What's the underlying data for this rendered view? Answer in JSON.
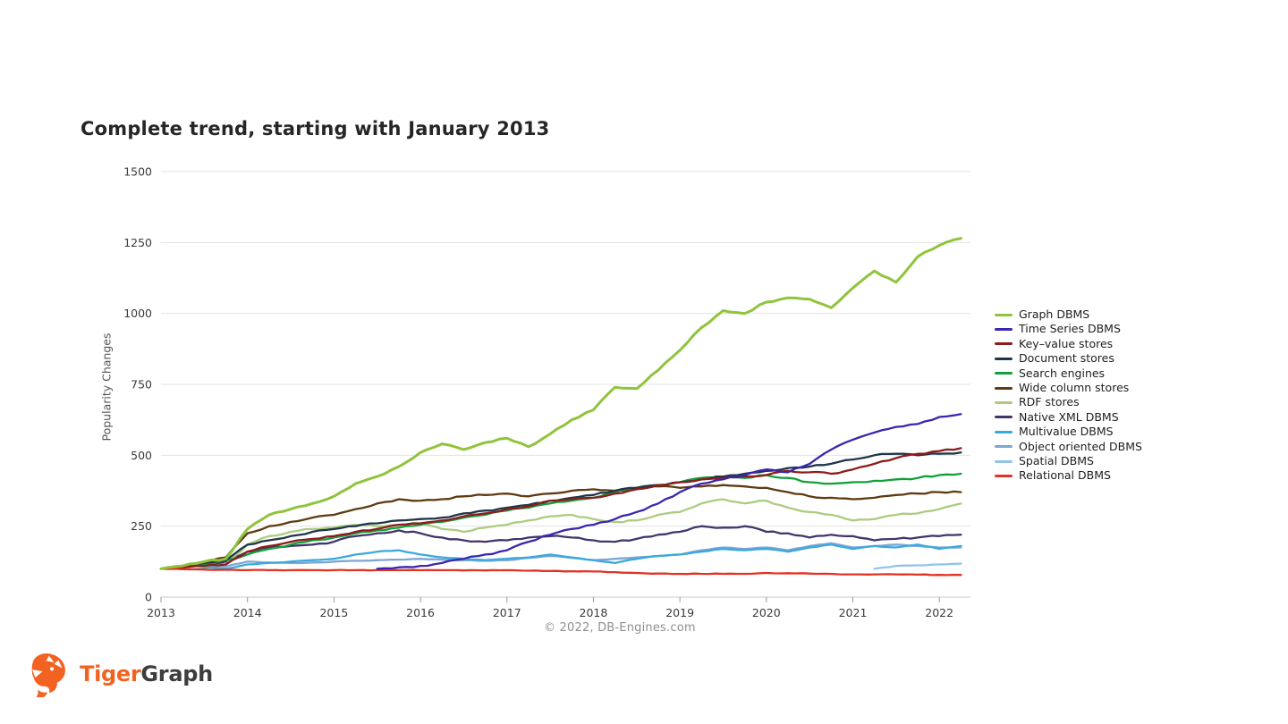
{
  "page": {
    "background": "#ffffff"
  },
  "header": {
    "title": "Complete trend, starting with January 2013"
  },
  "chart_data": {
    "type": "line",
    "title": "Complete trend, starting with January 2013",
    "xlabel": "",
    "ylabel": "Popularity Changes",
    "footnote": "© 2022, DB-Engines.com",
    "legend_position": "right",
    "grid": "horizontal",
    "xlim": [
      2013,
      2022.36
    ],
    "ylim": [
      0,
      1500
    ],
    "x_ticks": [
      2013,
      2014,
      2015,
      2016,
      2017,
      2018,
      2019,
      2020,
      2021,
      2022
    ],
    "y_ticks": [
      0,
      250,
      500,
      750,
      1000,
      1250,
      1500
    ],
    "x": [
      2013,
      2013.25,
      2013.5,
      2013.75,
      2014,
      2014.25,
      2014.5,
      2014.75,
      2015,
      2015.25,
      2015.5,
      2015.75,
      2016,
      2016.25,
      2016.5,
      2016.75,
      2017,
      2017.25,
      2017.5,
      2017.75,
      2018,
      2018.25,
      2018.5,
      2018.75,
      2019,
      2019.25,
      2019.5,
      2019.75,
      2020,
      2020.25,
      2020.5,
      2020.75,
      2021,
      2021.25,
      2021.5,
      2021.75,
      2022,
      2022.25
    ],
    "series": [
      {
        "name": "Graph DBMS",
        "color": "#8fc43c",
        "values": [
          100,
          110,
          125,
          135,
          240,
          290,
          310,
          330,
          355,
          400,
          425,
          460,
          510,
          540,
          520,
          545,
          560,
          530,
          575,
          625,
          660,
          740,
          735,
          800,
          870,
          950,
          1010,
          1000,
          1040,
          1055,
          1050,
          1020,
          1090,
          1150,
          1110,
          1200,
          1240,
          1265
        ]
      },
      {
        "name": "Time Series DBMS",
        "color": "#3a27ae",
        "values": [
          null,
          null,
          null,
          null,
          null,
          null,
          null,
          null,
          null,
          null,
          100,
          105,
          110,
          120,
          135,
          150,
          165,
          195,
          220,
          240,
          255,
          275,
          300,
          330,
          370,
          400,
          415,
          430,
          450,
          440,
          470,
          520,
          555,
          580,
          600,
          610,
          635,
          645
        ]
      },
      {
        "name": "Key–value stores",
        "color": "#8e1b1b",
        "values": [
          100,
          105,
          110,
          115,
          160,
          180,
          195,
          205,
          215,
          230,
          240,
          255,
          260,
          270,
          285,
          295,
          310,
          320,
          340,
          345,
          350,
          365,
          380,
          395,
          405,
          415,
          420,
          425,
          430,
          445,
          440,
          435,
          450,
          470,
          490,
          505,
          515,
          525
        ]
      },
      {
        "name": "Document stores",
        "color": "#1f364a",
        "values": [
          100,
          110,
          120,
          130,
          185,
          200,
          215,
          230,
          240,
          250,
          260,
          270,
          275,
          280,
          295,
          305,
          315,
          325,
          340,
          350,
          360,
          375,
          385,
          395,
          405,
          415,
          425,
          435,
          445,
          455,
          460,
          470,
          485,
          500,
          505,
          500,
          505,
          510
        ]
      },
      {
        "name": "Search engines",
        "color": "#12a03c",
        "values": [
          100,
          105,
          115,
          130,
          150,
          170,
          185,
          200,
          210,
          225,
          235,
          245,
          255,
          265,
          280,
          290,
          305,
          315,
          330,
          340,
          350,
          370,
          385,
          395,
          405,
          420,
          425,
          420,
          430,
          420,
          405,
          400,
          405,
          410,
          415,
          420,
          430,
          435
        ]
      },
      {
        "name": "Wide column stores",
        "color": "#5f3a12",
        "values": [
          100,
          110,
          125,
          140,
          225,
          250,
          265,
          280,
          290,
          310,
          330,
          345,
          340,
          345,
          355,
          360,
          365,
          355,
          365,
          375,
          380,
          375,
          385,
          390,
          385,
          390,
          395,
          390,
          385,
          370,
          355,
          350,
          345,
          350,
          360,
          365,
          370,
          370
        ]
      },
      {
        "name": "RDF stores",
        "color": "#accc7f",
        "values": [
          100,
          105,
          110,
          115,
          185,
          215,
          230,
          240,
          245,
          255,
          250,
          255,
          260,
          240,
          230,
          245,
          255,
          270,
          285,
          290,
          275,
          265,
          270,
          290,
          300,
          330,
          345,
          330,
          340,
          315,
          300,
          290,
          270,
          275,
          290,
          295,
          310,
          330
        ]
      },
      {
        "name": "Native XML DBMS",
        "color": "#42356b",
        "values": [
          100,
          105,
          115,
          125,
          160,
          175,
          180,
          185,
          195,
          215,
          225,
          235,
          225,
          210,
          200,
          195,
          200,
          210,
          215,
          210,
          200,
          195,
          205,
          220,
          230,
          250,
          245,
          250,
          230,
          225,
          210,
          220,
          215,
          200,
          205,
          210,
          215,
          220
        ]
      },
      {
        "name": "Multivalue DBMS",
        "color": "#3aa9dd",
        "values": [
          100,
          110,
          105,
          100,
          115,
          120,
          125,
          130,
          135,
          150,
          160,
          165,
          150,
          140,
          135,
          130,
          135,
          140,
          150,
          140,
          130,
          120,
          135,
          145,
          150,
          160,
          170,
          165,
          170,
          160,
          175,
          185,
          170,
          180,
          175,
          185,
          170,
          180
        ]
      },
      {
        "name": "Object oriented DBMS",
        "color": "#7fa5d3",
        "values": [
          100,
          105,
          110,
          108,
          125,
          122,
          120,
          122,
          125,
          128,
          130,
          132,
          135,
          132,
          130,
          128,
          130,
          138,
          145,
          138,
          130,
          135,
          140,
          145,
          150,
          165,
          175,
          170,
          175,
          165,
          180,
          190,
          175,
          180,
          185,
          180,
          175,
          175
        ]
      },
      {
        "name": "Spatial DBMS",
        "color": "#92c3ea",
        "values": [
          null,
          null,
          null,
          null,
          null,
          null,
          null,
          null,
          null,
          null,
          null,
          null,
          null,
          null,
          null,
          null,
          null,
          null,
          null,
          null,
          null,
          null,
          null,
          null,
          null,
          null,
          null,
          null,
          null,
          null,
          null,
          null,
          null,
          100,
          110,
          112,
          115,
          118
        ]
      },
      {
        "name": "Relational DBMS",
        "color": "#e23222",
        "values": [
          100,
          98,
          97,
          96,
          95,
          95,
          95,
          95,
          95,
          95,
          95,
          95,
          95,
          95,
          94,
          94,
          95,
          93,
          92,
          91,
          90,
          88,
          85,
          83,
          82,
          82,
          82,
          82,
          85,
          84,
          83,
          82,
          80,
          80,
          80,
          79,
          78,
          78
        ]
      }
    ]
  },
  "footer": {
    "logo_text_primary": "Tiger",
    "logo_text_secondary": "Graph"
  }
}
